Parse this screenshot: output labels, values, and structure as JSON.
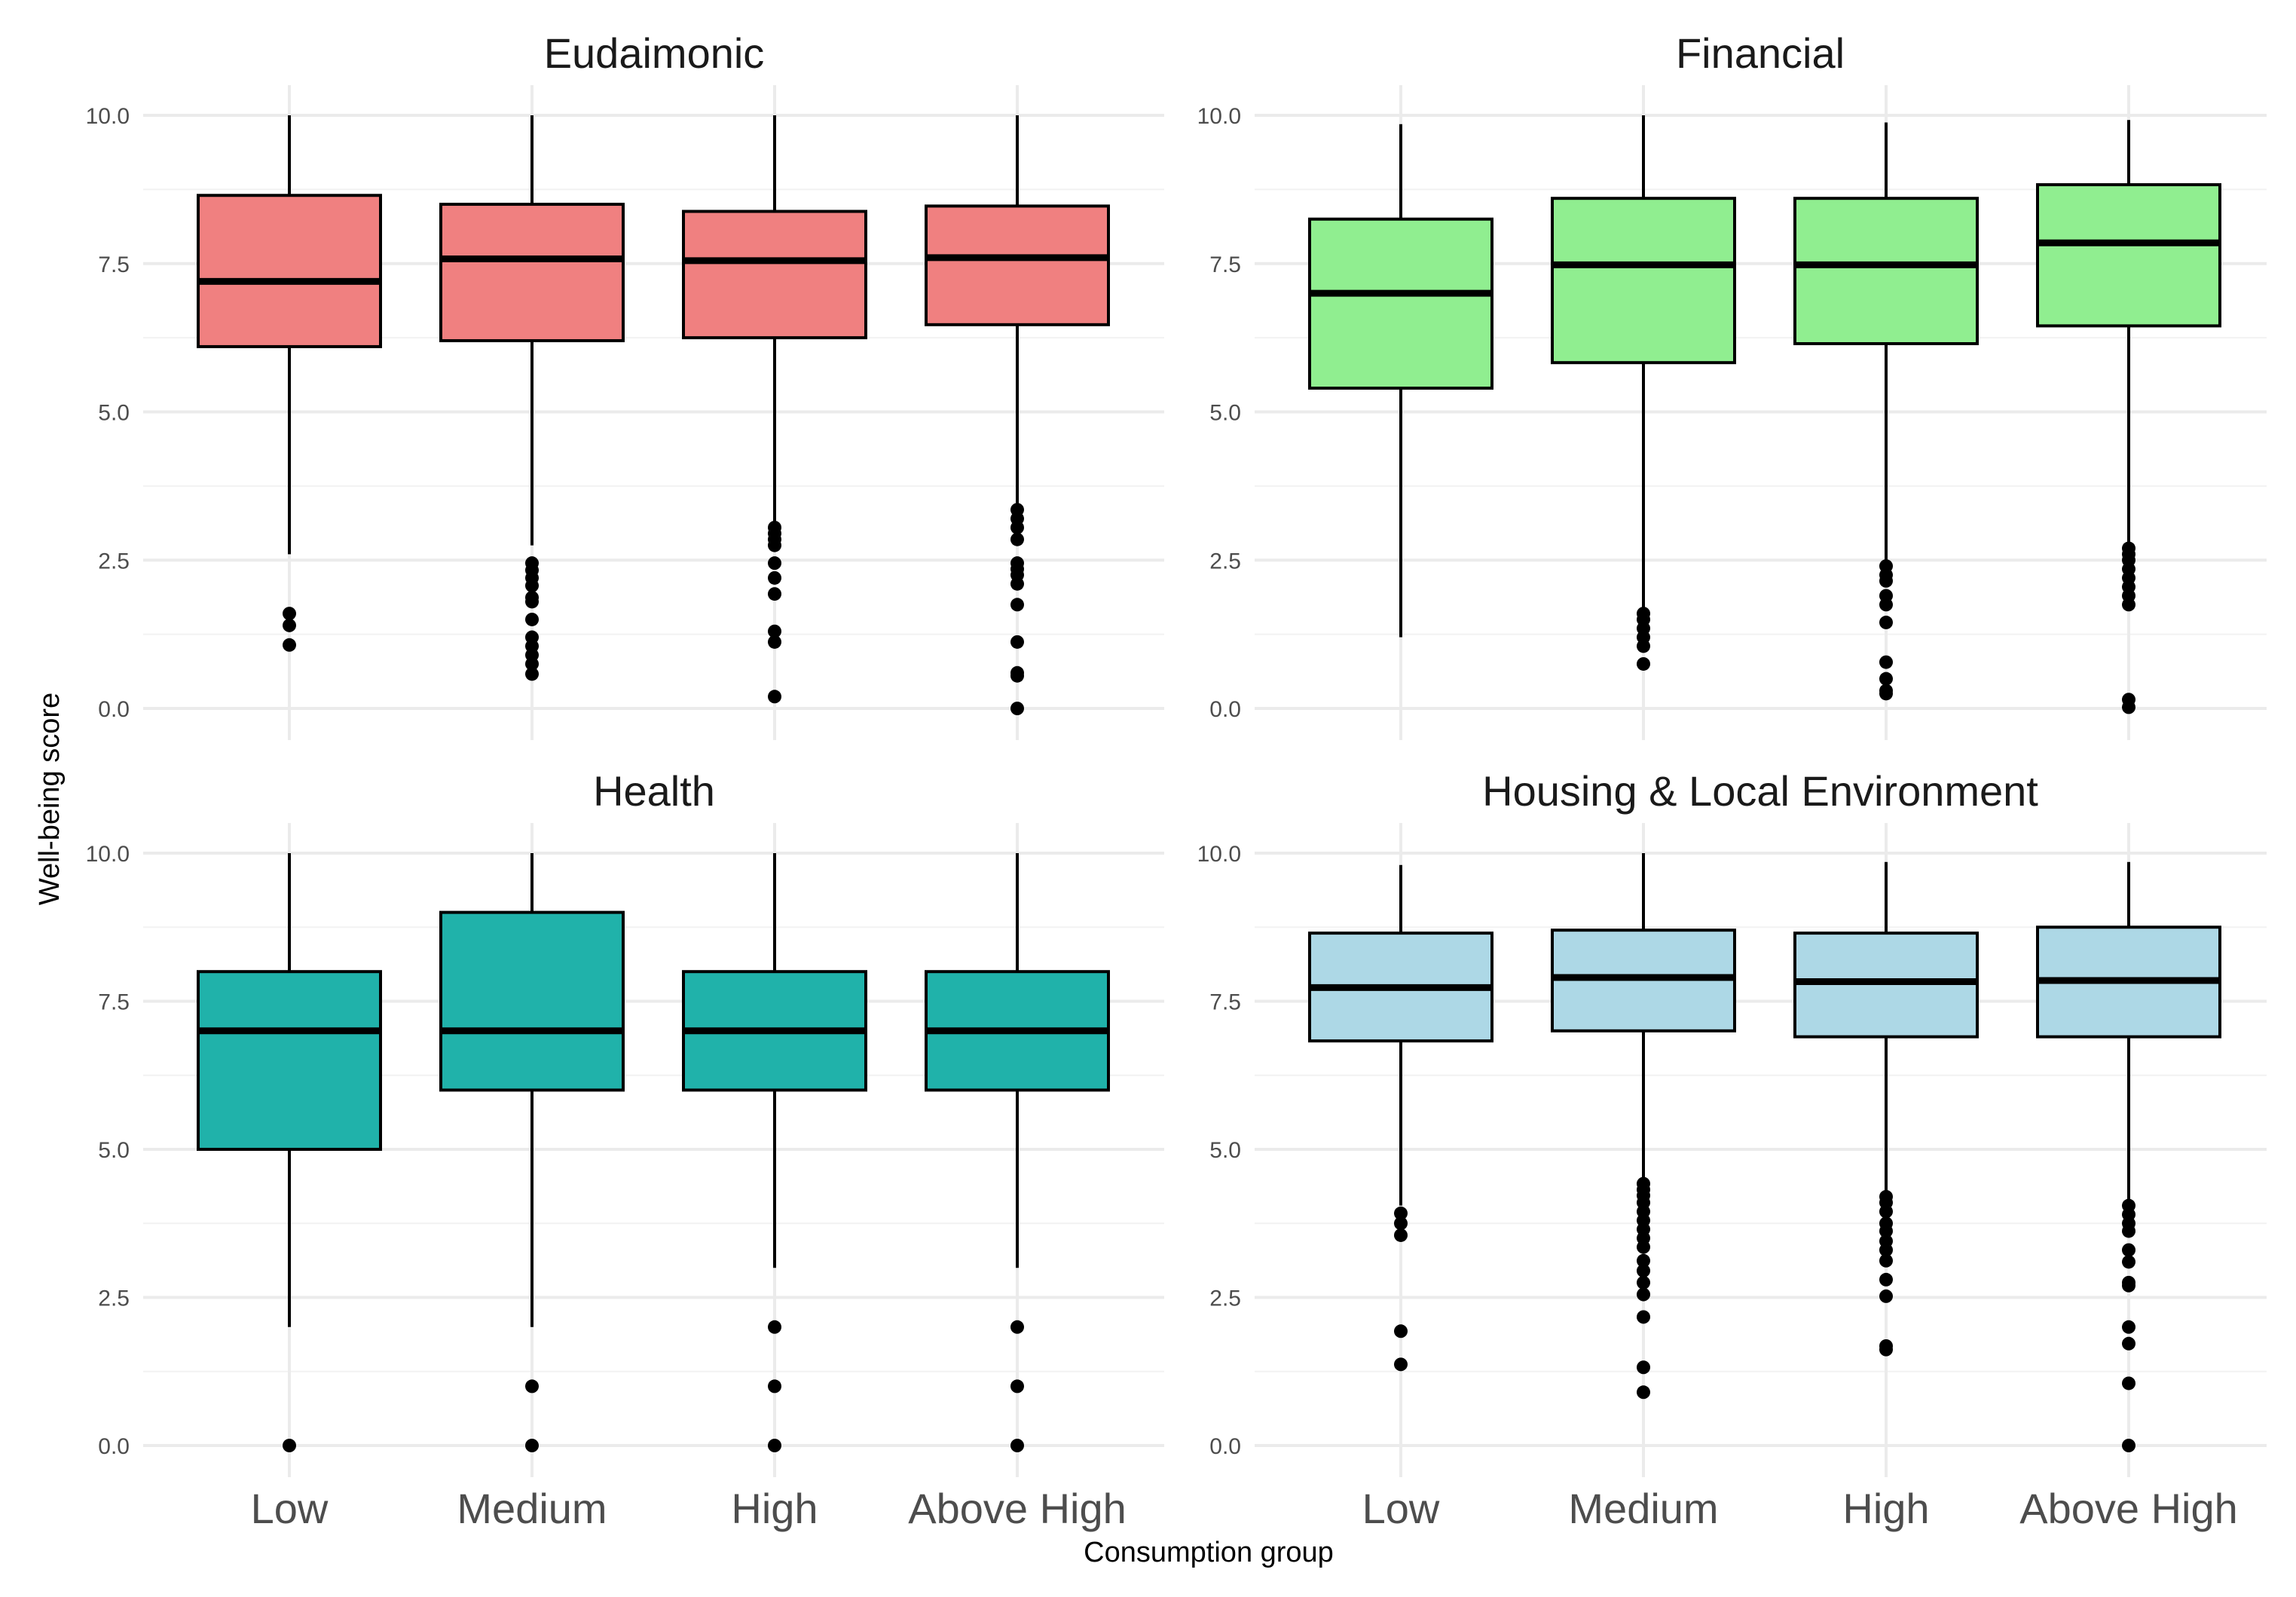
{
  "chart_data": {
    "type": "boxplot",
    "xlabel": "Consumption group",
    "ylabel": "Well-being score",
    "categories": [
      "Low",
      "Medium",
      "High",
      "Above High"
    ],
    "ylim": [
      0,
      10
    ],
    "yticks": [
      0,
      2.5,
      5,
      7.5,
      10
    ],
    "ytick_labels": [
      "0.0",
      "2.5",
      "5.0",
      "7.5",
      "10.0"
    ],
    "grid": true,
    "panels": [
      {
        "title": "Eudaimonic",
        "fill": "#F08080",
        "boxes": [
          {
            "category": "Low",
            "whisker_low": 2.6,
            "q1": 6.1,
            "median": 7.2,
            "q3": 8.65,
            "whisker_high": 10.0,
            "outliers": [
              1.6,
              1.4,
              1.07
            ]
          },
          {
            "category": "Medium",
            "whisker_low": 2.75,
            "q1": 6.2,
            "median": 7.58,
            "q3": 8.5,
            "whisker_high": 10.0,
            "outliers": [
              2.45,
              2.33,
              2.2,
              2.07,
              1.87,
              1.8,
              1.5,
              1.2,
              1.05,
              0.9,
              0.75,
              0.58
            ]
          },
          {
            "category": "High",
            "whisker_low": 3.1,
            "q1": 6.25,
            "median": 7.55,
            "q3": 8.38,
            "whisker_high": 10.0,
            "outliers": [
              3.05,
              2.95,
              2.85,
              2.75,
              2.45,
              2.2,
              1.93,
              1.3,
              1.12,
              0.2
            ]
          },
          {
            "category": "Above High",
            "whisker_low": 3.45,
            "q1": 6.47,
            "median": 7.6,
            "q3": 8.47,
            "whisker_high": 10.0,
            "outliers": [
              3.35,
              3.2,
              3.05,
              2.85,
              2.45,
              2.35,
              2.25,
              2.1,
              1.75,
              1.12,
              0.6,
              0.55,
              0.0
            ]
          }
        ]
      },
      {
        "title": "Financial",
        "fill": "#90EE90",
        "boxes": [
          {
            "category": "Low",
            "whisker_low": 1.2,
            "q1": 5.4,
            "median": 7.0,
            "q3": 8.25,
            "whisker_high": 9.85,
            "outliers": []
          },
          {
            "category": "Medium",
            "whisker_low": 1.65,
            "q1": 5.83,
            "median": 7.48,
            "q3": 8.6,
            "whisker_high": 10.0,
            "outliers": [
              1.6,
              1.5,
              1.35,
              1.2,
              1.05,
              0.75
            ]
          },
          {
            "category": "High",
            "whisker_low": 2.5,
            "q1": 6.15,
            "median": 7.48,
            "q3": 8.6,
            "whisker_high": 9.88,
            "outliers": [
              2.4,
              2.25,
              2.15,
              1.9,
              1.75,
              1.45,
              0.78,
              0.5,
              0.3,
              0.25
            ]
          },
          {
            "category": "Above High",
            "whisker_low": 2.8,
            "q1": 6.45,
            "median": 7.85,
            "q3": 8.83,
            "whisker_high": 9.92,
            "outliers": [
              2.7,
              2.6,
              2.5,
              2.35,
              2.2,
              2.05,
              1.9,
              1.75,
              0.15,
              0.02
            ]
          }
        ]
      },
      {
        "title": "Health",
        "fill": "#20B2AA",
        "boxes": [
          {
            "category": "Low",
            "whisker_low": 2.0,
            "q1": 5.0,
            "median": 7.0,
            "q3": 8.0,
            "whisker_high": 10.0,
            "outliers": [
              0.0
            ]
          },
          {
            "category": "Medium",
            "whisker_low": 2.0,
            "q1": 6.0,
            "median": 7.0,
            "q3": 9.0,
            "whisker_high": 10.0,
            "outliers": [
              1.0,
              0.0
            ]
          },
          {
            "category": "High",
            "whisker_low": 3.0,
            "q1": 6.0,
            "median": 7.0,
            "q3": 8.0,
            "whisker_high": 10.0,
            "outliers": [
              2.0,
              1.0,
              0.0
            ]
          },
          {
            "category": "Above High",
            "whisker_low": 3.0,
            "q1": 6.0,
            "median": 7.0,
            "q3": 8.0,
            "whisker_high": 10.0,
            "outliers": [
              2.0,
              1.0,
              0.0
            ]
          }
        ]
      },
      {
        "title": "Housing & Local Environment",
        "fill": "#ADD8E6",
        "boxes": [
          {
            "category": "Low",
            "whisker_low": 4.05,
            "q1": 6.83,
            "median": 7.73,
            "q3": 8.65,
            "whisker_high": 9.8,
            "outliers": [
              3.92,
              3.75,
              3.55,
              1.93,
              1.37
            ]
          },
          {
            "category": "Medium",
            "whisker_low": 4.5,
            "q1": 7.0,
            "median": 7.9,
            "q3": 8.7,
            "whisker_high": 10.0,
            "outliers": [
              4.42,
              4.32,
              4.22,
              4.1,
              3.95,
              3.8,
              3.65,
              3.5,
              3.35,
              3.12,
              2.95,
              2.75,
              2.55,
              2.17,
              1.32,
              0.9
            ]
          },
          {
            "category": "High",
            "whisker_low": 4.3,
            "q1": 6.9,
            "median": 7.83,
            "q3": 8.65,
            "whisker_high": 9.85,
            "outliers": [
              4.2,
              4.1,
              3.95,
              3.75,
              3.62,
              3.45,
              3.3,
              3.12,
              2.8,
              2.52,
              1.68,
              1.62
            ]
          },
          {
            "category": "Above High",
            "whisker_low": 4.15,
            "q1": 6.9,
            "median": 7.85,
            "q3": 8.75,
            "whisker_high": 9.85,
            "outliers": [
              4.05,
              3.9,
              3.75,
              3.62,
              3.3,
              3.1,
              2.75,
              2.7,
              2.0,
              1.72,
              1.05,
              0.0
            ]
          }
        ]
      }
    ]
  }
}
